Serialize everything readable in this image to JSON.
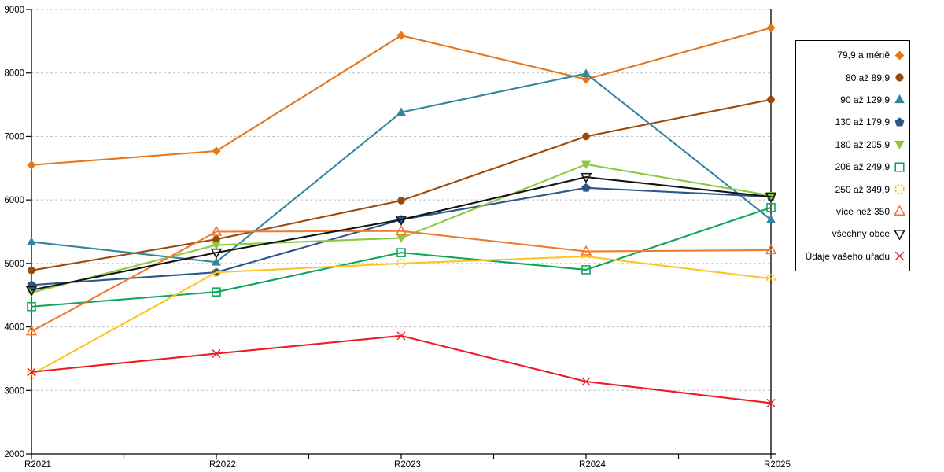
{
  "chart_data": {
    "type": "line",
    "title": "",
    "xlabel": "",
    "ylabel": "",
    "grid": true,
    "legend_position": "right",
    "x_categories": [
      "R2021",
      "R2022",
      "R2023",
      "R2024",
      "R2025"
    ],
    "y_axis": {
      "min": 2000,
      "max": 9000,
      "tick_step": 1000,
      "tick_labels": [
        "2000",
        "3000",
        "4000",
        "5000",
        "6000",
        "7000",
        "8000",
        "9000"
      ]
    },
    "series": [
      {
        "name": "79,9 a méně",
        "color": "#e4761b",
        "marker": "diamond",
        "fill": "filled",
        "values": [
          6550,
          6770,
          8590,
          7900,
          8710
        ]
      },
      {
        "name": "80 až 89,9",
        "color": "#9a4a0c",
        "marker": "circle",
        "fill": "filled",
        "values": [
          4890,
          5380,
          5990,
          7000,
          7580
        ]
      },
      {
        "name": "90 až 129,9",
        "color": "#33849e",
        "marker": "triangle-up",
        "fill": "filled",
        "values": [
          5340,
          5020,
          7380,
          7990,
          5690
        ]
      },
      {
        "name": "130 až 179,9",
        "color": "#2a5788",
        "marker": "pentagon",
        "fill": "filled",
        "values": [
          4660,
          4860,
          5690,
          6190,
          6050
        ]
      },
      {
        "name": "180 až 205,9",
        "color": "#8fc742",
        "marker": "triangle-down",
        "fill": "filled",
        "values": [
          4540,
          5290,
          5400,
          6560,
          6070
        ]
      },
      {
        "name": "206 až 249,9",
        "color": "#0fa65a",
        "marker": "square",
        "fill": "open",
        "values": [
          4320,
          4550,
          5170,
          4900,
          5880
        ]
      },
      {
        "name": "250 až 349,9",
        "color": "#fdc428",
        "marker": "circle-dashed",
        "fill": "open",
        "values": [
          3250,
          4860,
          5000,
          5110,
          4760
        ]
      },
      {
        "name": "více než 350",
        "color": "#ed7c31",
        "marker": "triangle-up",
        "fill": "open",
        "values": [
          3930,
          5500,
          5510,
          5190,
          5210
        ]
      },
      {
        "name": "všechny obce",
        "color": "#141414",
        "marker": "triangle-down",
        "fill": "open",
        "values": [
          4580,
          5170,
          5690,
          6360,
          6050
        ]
      },
      {
        "name": "Údaje vašeho úřadu",
        "color": "#ed1c24",
        "marker": "x",
        "fill": "open",
        "values": [
          3290,
          3580,
          3860,
          3140,
          2800
        ]
      }
    ],
    "style": {
      "gridline_color": "#bfbfbf",
      "axis_color": "#000000"
    }
  }
}
